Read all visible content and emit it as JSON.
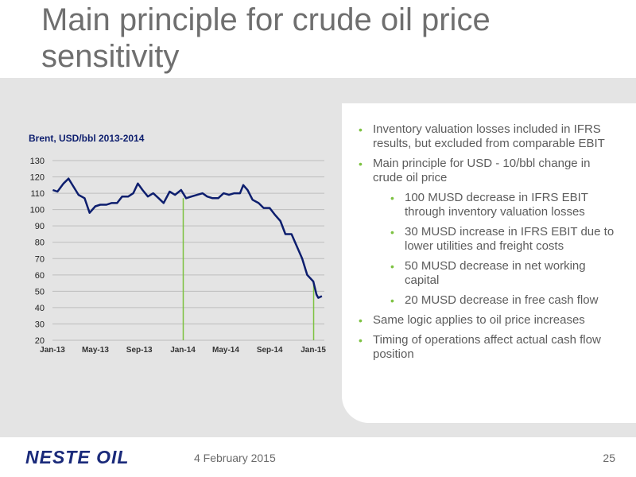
{
  "slide": {
    "title": "Main principle for crude oil price sensitivity",
    "date": "4 February 2015",
    "page_number": "25",
    "logo_text": "NESTE OIL"
  },
  "colors": {
    "accent_green": "#7dc242",
    "line_navy": "#0d1e6e",
    "title_gray": "#6f6f6f",
    "panel_gray": "#e4e4e4",
    "logo_navy": "#1a2a7a"
  },
  "bullets": [
    {
      "level": 1,
      "text": "Inventory valuation losses included in IFRS results, but excluded from comparable EBIT"
    },
    {
      "level": 1,
      "text": "Main principle for USD - 10/bbl change in crude oil price"
    },
    {
      "level": 2,
      "text": "100 MUSD decrease in IFRS EBIT through inventory valuation losses"
    },
    {
      "level": 2,
      "text": "30 MUSD increase in IFRS EBIT due to lower utilities and freight costs"
    },
    {
      "level": 2,
      "text": "50 MUSD decrease in net working capital"
    },
    {
      "level": 2,
      "text": "20 MUSD decrease in free cash flow"
    },
    {
      "level": 1,
      "text": "Same logic applies to oil price increases"
    },
    {
      "level": 1,
      "text": "Timing of operations affect actual cash flow position"
    }
  ],
  "chart_data": {
    "type": "line",
    "title": "Brent, USD/bbl 2013-2014",
    "xlabel": "",
    "ylabel": "",
    "x_range": [
      "2013-01",
      "2015-02"
    ],
    "ylim": [
      20,
      130
    ],
    "yticks": [
      20,
      30,
      40,
      50,
      60,
      70,
      80,
      90,
      100,
      110,
      120,
      130
    ],
    "xticks": [
      "Jan-13",
      "May-13",
      "Sep-13",
      "Jan-14",
      "May-14",
      "Sep-14",
      "Jan-15"
    ],
    "grid": true,
    "series": [
      {
        "color": "#0d1e6e",
        "points": [
          [
            "2013-01-02",
            112
          ],
          [
            "2013-01-15",
            111
          ],
          [
            "2013-02-01",
            116
          ],
          [
            "2013-02-15",
            119
          ],
          [
            "2013-03-01",
            114
          ],
          [
            "2013-03-15",
            109
          ],
          [
            "2013-04-01",
            107
          ],
          [
            "2013-04-15",
            98
          ],
          [
            "2013-05-01",
            102
          ],
          [
            "2013-05-15",
            103
          ],
          [
            "2013-06-01",
            103
          ],
          [
            "2013-06-15",
            104
          ],
          [
            "2013-07-01",
            104
          ],
          [
            "2013-07-15",
            108
          ],
          [
            "2013-08-01",
            108
          ],
          [
            "2013-08-15",
            110
          ],
          [
            "2013-08-28",
            116
          ],
          [
            "2013-09-10",
            112
          ],
          [
            "2013-09-25",
            108
          ],
          [
            "2013-10-10",
            110
          ],
          [
            "2013-10-25",
            107
          ],
          [
            "2013-11-08",
            104
          ],
          [
            "2013-11-25",
            111
          ],
          [
            "2013-12-10",
            109
          ],
          [
            "2013-12-27",
            112
          ],
          [
            "2014-01-10",
            107
          ],
          [
            "2014-01-25",
            108
          ],
          [
            "2014-02-10",
            109
          ],
          [
            "2014-02-25",
            110
          ],
          [
            "2014-03-10",
            108
          ],
          [
            "2014-03-25",
            107
          ],
          [
            "2014-04-10",
            107
          ],
          [
            "2014-04-25",
            110
          ],
          [
            "2014-05-10",
            109
          ],
          [
            "2014-05-25",
            110
          ],
          [
            "2014-06-10",
            110
          ],
          [
            "2014-06-19",
            115
          ],
          [
            "2014-07-01",
            112
          ],
          [
            "2014-07-15",
            106
          ],
          [
            "2014-08-01",
            104
          ],
          [
            "2014-08-15",
            101
          ],
          [
            "2014-09-01",
            101
          ],
          [
            "2014-09-15",
            97
          ],
          [
            "2014-10-01",
            93
          ],
          [
            "2014-10-15",
            85
          ],
          [
            "2014-11-01",
            85
          ],
          [
            "2014-11-15",
            78
          ],
          [
            "2014-12-01",
            70
          ],
          [
            "2014-12-15",
            60
          ],
          [
            "2015-01-01",
            56
          ],
          [
            "2015-01-10",
            48
          ],
          [
            "2015-01-15",
            46
          ],
          [
            "2015-01-25",
            47
          ]
        ]
      }
    ],
    "markers": [
      {
        "x": "2014-01-02",
        "y": 107,
        "color": "#7dc242"
      },
      {
        "x": "2015-01-02",
        "y": 56,
        "color": "#7dc242"
      }
    ]
  }
}
